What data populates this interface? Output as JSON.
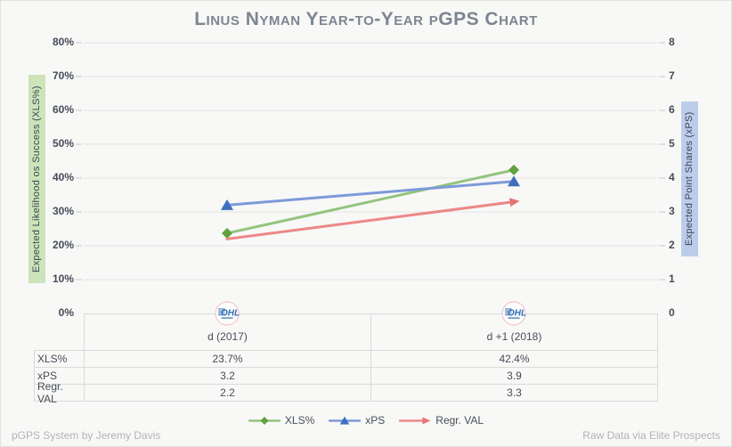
{
  "title": "Linus Nyman Year-to-Year pGPS Chart",
  "chart_data": {
    "type": "line",
    "title": "Linus Nyman Year-to-Year pGPS Chart",
    "categories": [
      "d (2017)",
      "d +1 (2018)"
    ],
    "series": [
      {
        "name": "XLS%",
        "axis": "left",
        "values": [
          23.7,
          42.4
        ],
        "display_values": [
          "23.7%",
          "42.4%"
        ],
        "line_color": "#93c47d",
        "marker_color": "#60a13e",
        "marker": "diamond"
      },
      {
        "name": "xPS",
        "axis": "right",
        "values": [
          3.2,
          3.9
        ],
        "display_values": [
          "3.2",
          "3.9"
        ],
        "line_color": "#7d9ad8",
        "marker_color": "#3f6fbe",
        "marker": "triangle"
      },
      {
        "name": "Regr. VAL",
        "axis": "right",
        "values": [
          2.2,
          3.3
        ],
        "display_values": [
          "2.2",
          "3.3"
        ],
        "line_color": "#ec8888",
        "marker_color": "#e57373",
        "marker": "arrow"
      }
    ],
    "left_axis": {
      "label": "Expected Likelihood os Success (XLS%)",
      "min": 0,
      "max": 80,
      "tick_step": 10,
      "tick_labels": [
        "80%",
        "70%",
        "60%",
        "50%",
        "40%",
        "30%",
        "20%",
        "10%",
        "0%"
      ],
      "highlight_color": "#cde4ba"
    },
    "right_axis": {
      "label": "Expected Point Shares (xPS)",
      "min": 0,
      "max": 8,
      "tick_step": 1,
      "tick_labels": [
        "8",
        "7",
        "6",
        "5",
        "4",
        "3",
        "2",
        "1",
        "0"
      ],
      "highlight_color": "#bccdec"
    },
    "legend_position": "bottom",
    "grid": "horizontal"
  },
  "table": {
    "column_headers": [
      "d (2017)",
      "d +1 (2018)"
    ],
    "rows": [
      {
        "label": "XLS%",
        "values": [
          "23.7%",
          "42.4%"
        ]
      },
      {
        "label": "xPS",
        "values": [
          "3.2",
          "3.9"
        ]
      },
      {
        "label": "Regr. VAL",
        "values": [
          "2.2",
          "3.3"
        ]
      }
    ]
  },
  "logo": {
    "text": "OHL"
  },
  "footer": {
    "left": "pGPS System by Jeremy Davis",
    "right": "Raw Data via Elite Prospects"
  },
  "colors": {
    "background": "#f8f8f7",
    "grid": "#e4e4e4",
    "tick_dash": "#c9c9c9",
    "title": "#7d8590",
    "text": "#474d59",
    "muted": "#b0b3b8",
    "table_border": "#dadada",
    "logo_blue": "#2e6db4",
    "logo_ring": "#f2bcc2"
  }
}
